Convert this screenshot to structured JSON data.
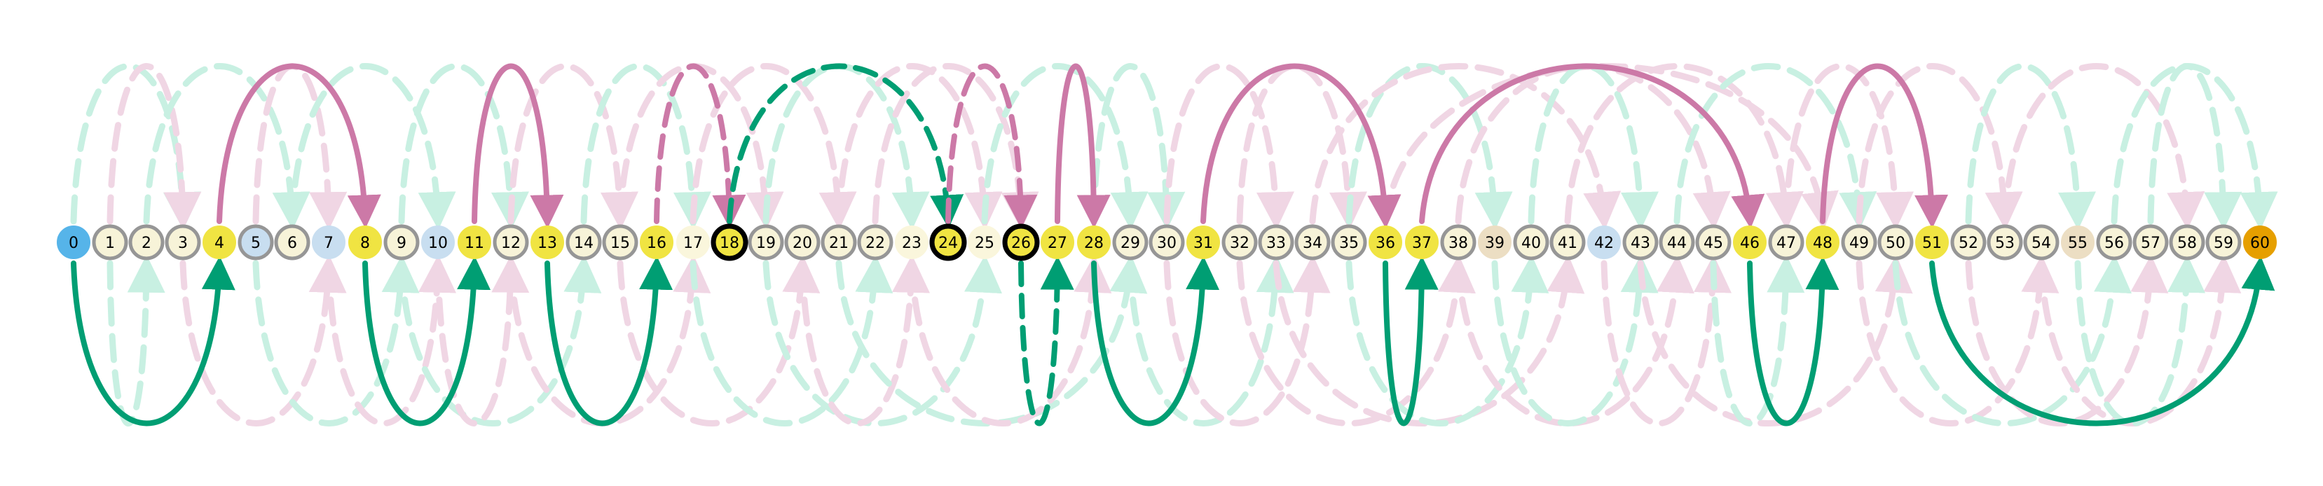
{
  "colors": {
    "plain_fill": "#f7f3d8",
    "plain_stroke": "#969696",
    "yellow": "#f0e442",
    "blue": "#56b4e9",
    "orange": "#e69f00",
    "lightblue": "#c8def0",
    "beige": "#ecdec3",
    "cream": "#faf6dc",
    "pink_strong": "#cc79a7",
    "pink_faint": "#f0d6e4",
    "green_strong": "#009e73",
    "green_faint": "#c8f0e2",
    "ring": "#000000"
  },
  "nodes": [
    {
      "label": "0",
      "kind": "blue"
    },
    {
      "label": "1",
      "kind": "plain"
    },
    {
      "label": "2",
      "kind": "plain"
    },
    {
      "label": "3",
      "kind": "plain"
    },
    {
      "label": "4",
      "kind": "yellow"
    },
    {
      "label": "5",
      "kind": "lightblue_ring"
    },
    {
      "label": "6",
      "kind": "plain"
    },
    {
      "label": "7",
      "kind": "lightblue"
    },
    {
      "label": "8",
      "kind": "yellow"
    },
    {
      "label": "9",
      "kind": "plain"
    },
    {
      "label": "10",
      "kind": "lightblue"
    },
    {
      "label": "11",
      "kind": "yellow"
    },
    {
      "label": "12",
      "kind": "plain"
    },
    {
      "label": "13",
      "kind": "yellow"
    },
    {
      "label": "14",
      "kind": "plain"
    },
    {
      "label": "15",
      "kind": "plain"
    },
    {
      "label": "16",
      "kind": "yellow"
    },
    {
      "label": "17",
      "kind": "cream"
    },
    {
      "label": "18",
      "kind": "yellow_bold"
    },
    {
      "label": "19",
      "kind": "plain"
    },
    {
      "label": "20",
      "kind": "plain"
    },
    {
      "label": "21",
      "kind": "plain"
    },
    {
      "label": "22",
      "kind": "plain"
    },
    {
      "label": "23",
      "kind": "cream"
    },
    {
      "label": "24",
      "kind": "yellow_bold"
    },
    {
      "label": "25",
      "kind": "cream"
    },
    {
      "label": "26",
      "kind": "yellow_bold"
    },
    {
      "label": "27",
      "kind": "yellow"
    },
    {
      "label": "28",
      "kind": "yellow"
    },
    {
      "label": "29",
      "kind": "plain"
    },
    {
      "label": "30",
      "kind": "plain"
    },
    {
      "label": "31",
      "kind": "yellow"
    },
    {
      "label": "32",
      "kind": "plain"
    },
    {
      "label": "33",
      "kind": "plain"
    },
    {
      "label": "34",
      "kind": "plain"
    },
    {
      "label": "35",
      "kind": "plain"
    },
    {
      "label": "36",
      "kind": "yellow"
    },
    {
      "label": "37",
      "kind": "yellow"
    },
    {
      "label": "38",
      "kind": "plain"
    },
    {
      "label": "39",
      "kind": "beige"
    },
    {
      "label": "40",
      "kind": "plain"
    },
    {
      "label": "41",
      "kind": "plain"
    },
    {
      "label": "42",
      "kind": "lightblue"
    },
    {
      "label": "43",
      "kind": "plain"
    },
    {
      "label": "44",
      "kind": "plain"
    },
    {
      "label": "45",
      "kind": "plain"
    },
    {
      "label": "46",
      "kind": "yellow"
    },
    {
      "label": "47",
      "kind": "plain"
    },
    {
      "label": "48",
      "kind": "yellow"
    },
    {
      "label": "49",
      "kind": "plain"
    },
    {
      "label": "50",
      "kind": "plain"
    },
    {
      "label": "51",
      "kind": "yellow"
    },
    {
      "label": "52",
      "kind": "plain"
    },
    {
      "label": "53",
      "kind": "plain"
    },
    {
      "label": "54",
      "kind": "plain"
    },
    {
      "label": "55",
      "kind": "beige"
    },
    {
      "label": "56",
      "kind": "plain"
    },
    {
      "label": "57",
      "kind": "plain"
    },
    {
      "label": "58",
      "kind": "plain"
    },
    {
      "label": "59",
      "kind": "plain"
    },
    {
      "label": "60",
      "kind": "orange"
    }
  ],
  "edges_strong": [
    {
      "from": 4,
      "to": 8,
      "side": "top",
      "style": "solid",
      "color": "pink"
    },
    {
      "from": 11,
      "to": 13,
      "side": "top",
      "style": "solid",
      "color": "pink"
    },
    {
      "from": 16,
      "to": 18,
      "side": "top",
      "style": "dashed",
      "color": "pink"
    },
    {
      "from": 18,
      "to": 24,
      "side": "top",
      "style": "dashed",
      "color": "green"
    },
    {
      "from": 24,
      "to": 26,
      "side": "top",
      "style": "dashed",
      "color": "pink"
    },
    {
      "from": 27,
      "to": 28,
      "side": "top",
      "style": "solid",
      "color": "pink"
    },
    {
      "from": 31,
      "to": 36,
      "side": "top",
      "style": "solid",
      "color": "pink"
    },
    {
      "from": 37,
      "to": 46,
      "side": "top",
      "style": "solid",
      "color": "pink"
    },
    {
      "from": 48,
      "to": 51,
      "side": "top",
      "style": "solid",
      "color": "pink"
    },
    {
      "from": 0,
      "to": 4,
      "side": "bottom",
      "style": "solid",
      "color": "green"
    },
    {
      "from": 8,
      "to": 11,
      "side": "bottom",
      "style": "solid",
      "color": "green"
    },
    {
      "from": 13,
      "to": 16,
      "side": "bottom",
      "style": "solid",
      "color": "green"
    },
    {
      "from": 26,
      "to": 27,
      "side": "bottom",
      "style": "dashed",
      "color": "green"
    },
    {
      "from": 28,
      "to": 31,
      "side": "bottom",
      "style": "solid",
      "color": "green"
    },
    {
      "from": 36,
      "to": 37,
      "side": "bottom",
      "style": "solid",
      "color": "green"
    },
    {
      "from": 46,
      "to": 48,
      "side": "bottom",
      "style": "solid",
      "color": "green"
    },
    {
      "from": 51,
      "to": 60,
      "side": "bottom",
      "style": "solid",
      "color": "green"
    }
  ],
  "edges_faint": [
    {
      "from": 0,
      "to": 3,
      "side": "top",
      "color": "green"
    },
    {
      "from": 1,
      "to": 3,
      "side": "top",
      "color": "pink"
    },
    {
      "from": 2,
      "to": 6,
      "side": "top",
      "color": "green"
    },
    {
      "from": 5,
      "to": 7,
      "side": "top",
      "color": "pink"
    },
    {
      "from": 6,
      "to": 10,
      "side": "top",
      "color": "green"
    },
    {
      "from": 9,
      "to": 12,
      "side": "top",
      "color": "green"
    },
    {
      "from": 12,
      "to": 15,
      "side": "top",
      "color": "pink"
    },
    {
      "from": 14,
      "to": 17,
      "side": "top",
      "color": "green"
    },
    {
      "from": 15,
      "to": 19,
      "side": "top",
      "color": "pink"
    },
    {
      "from": 17,
      "to": 21,
      "side": "top",
      "color": "pink"
    },
    {
      "from": 19,
      "to": 23,
      "side": "top",
      "color": "green"
    },
    {
      "from": 21,
      "to": 25,
      "side": "top",
      "color": "pink"
    },
    {
      "from": 22,
      "to": 26,
      "side": "top",
      "color": "pink"
    },
    {
      "from": 25,
      "to": 29,
      "side": "top",
      "color": "green"
    },
    {
      "from": 28,
      "to": 30,
      "side": "top",
      "color": "green"
    },
    {
      "from": 30,
      "to": 33,
      "side": "top",
      "color": "pink"
    },
    {
      "from": 32,
      "to": 35,
      "side": "top",
      "color": "pink"
    },
    {
      "from": 35,
      "to": 39,
      "side": "top",
      "color": "green"
    },
    {
      "from": 34,
      "to": 42,
      "side": "top",
      "color": "pink"
    },
    {
      "from": 36,
      "to": 48,
      "side": "top",
      "color": "pink"
    },
    {
      "from": 38,
      "to": 45,
      "side": "top",
      "color": "pink"
    },
    {
      "from": 40,
      "to": 43,
      "side": "top",
      "color": "green"
    },
    {
      "from": 41,
      "to": 47,
      "side": "top",
      "color": "pink"
    },
    {
      "from": 44,
      "to": 49,
      "side": "top",
      "color": "green"
    },
    {
      "from": 47,
      "to": 50,
      "side": "top",
      "color": "pink"
    },
    {
      "from": 49,
      "to": 53,
      "side": "top",
      "color": "pink"
    },
    {
      "from": 52,
      "to": 55,
      "side": "top",
      "color": "green"
    },
    {
      "from": 53,
      "to": 58,
      "side": "top",
      "color": "pink"
    },
    {
      "from": 56,
      "to": 60,
      "side": "top",
      "color": "green"
    },
    {
      "from": 57,
      "to": 59,
      "side": "top",
      "color": "green"
    },
    {
      "from": 1,
      "to": 2,
      "side": "bottom",
      "color": "green"
    },
    {
      "from": 3,
      "to": 7,
      "side": "bottom",
      "color": "pink"
    },
    {
      "from": 5,
      "to": 9,
      "side": "bottom",
      "color": "green"
    },
    {
      "from": 7,
      "to": 10,
      "side": "bottom",
      "color": "pink"
    },
    {
      "from": 9,
      "to": 14,
      "side": "bottom",
      "color": "green"
    },
    {
      "from": 10,
      "to": 12,
      "side": "bottom",
      "color": "pink"
    },
    {
      "from": 12,
      "to": 17,
      "side": "bottom",
      "color": "pink"
    },
    {
      "from": 15,
      "to": 20,
      "side": "bottom",
      "color": "pink"
    },
    {
      "from": 17,
      "to": 22,
      "side": "bottom",
      "color": "green"
    },
    {
      "from": 19,
      "to": 25,
      "side": "bottom",
      "color": "green"
    },
    {
      "from": 20,
      "to": 23,
      "side": "bottom",
      "color": "pink"
    },
    {
      "from": 21,
      "to": 29,
      "side": "bottom",
      "color": "green"
    },
    {
      "from": 23,
      "to": 28,
      "side": "bottom",
      "color": "pink"
    },
    {
      "from": 29,
      "to": 33,
      "side": "bottom",
      "color": "green"
    },
    {
      "from": 30,
      "to": 34,
      "side": "bottom",
      "color": "pink"
    },
    {
      "from": 32,
      "to": 38,
      "side": "bottom",
      "color": "pink"
    },
    {
      "from": 33,
      "to": 41,
      "side": "bottom",
      "color": "pink"
    },
    {
      "from": 35,
      "to": 40,
      "side": "bottom",
      "color": "green"
    },
    {
      "from": 38,
      "to": 44,
      "side": "bottom",
      "color": "pink"
    },
    {
      "from": 39,
      "to": 43,
      "side": "bottom",
      "color": "green"
    },
    {
      "from": 42,
      "to": 45,
      "side": "bottom",
      "color": "pink"
    },
    {
      "from": 43,
      "to": 50,
      "side": "bottom",
      "color": "pink"
    },
    {
      "from": 45,
      "to": 47,
      "side": "bottom",
      "color": "green"
    },
    {
      "from": 49,
      "to": 54,
      "side": "bottom",
      "color": "pink"
    },
    {
      "from": 50,
      "to": 56,
      "side": "bottom",
      "color": "green"
    },
    {
      "from": 52,
      "to": 57,
      "side": "bottom",
      "color": "pink"
    },
    {
      "from": 54,
      "to": 59,
      "side": "bottom",
      "color": "pink"
    },
    {
      "from": 55,
      "to": 58,
      "side": "bottom",
      "color": "green"
    }
  ]
}
